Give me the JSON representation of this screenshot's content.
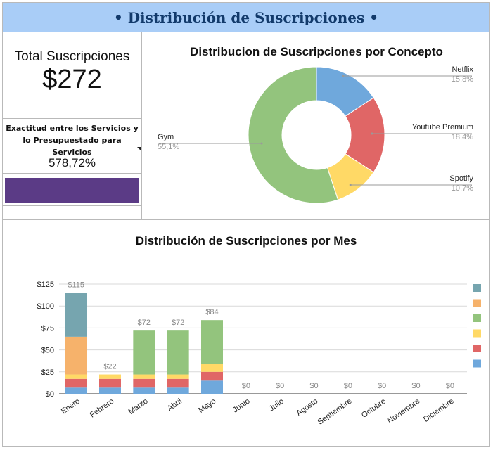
{
  "header": {
    "title": "• Distribución de Suscripciones •"
  },
  "summary": {
    "total_label": "Total Suscripciones",
    "total_value": "$272",
    "accuracy_label": "Exactitud entre los Servicios y lo Presupuestado para Servicios",
    "accuracy_value": "578,72%",
    "accuracy_color": "#5b3b86"
  },
  "chart_data": [
    {
      "type": "pie",
      "donut": true,
      "title": "Distribucion de Suscripciones por Concepto",
      "slices": [
        {
          "label": "Netflix",
          "value": 15.8,
          "value_label": "15,8%",
          "color": "#6fa8dc"
        },
        {
          "label": "Youtube Premium",
          "value": 18.4,
          "value_label": "18,4%",
          "color": "#e06666"
        },
        {
          "label": "Spotify",
          "value": 10.7,
          "value_label": "10,7%",
          "color": "#ffd966"
        },
        {
          "label": "Gym",
          "value": 55.1,
          "value_label": "55,1%",
          "color": "#93c47d"
        }
      ]
    },
    {
      "type": "bar",
      "stacked": true,
      "title": "Distribución de Suscripciones por Mes",
      "categories": [
        "Enero",
        "Febrero",
        "Marzo",
        "Abril",
        "Mayo",
        "Junio",
        "Julio",
        "Agosto",
        "Septiembre",
        "Octubre",
        "Noviembre",
        "Diciembre"
      ],
      "totals_labels": [
        "$115",
        "$22",
        "$72",
        "$72",
        "$84",
        "$0",
        "$0",
        "$0",
        "$0",
        "$0",
        "$0",
        "$0"
      ],
      "series": [
        {
          "color": "#6fa8dc",
          "values": [
            7,
            7,
            7,
            7,
            15,
            0,
            0,
            0,
            0,
            0,
            0,
            0
          ]
        },
        {
          "color": "#e06666",
          "values": [
            10,
            10,
            10,
            10,
            10,
            0,
            0,
            0,
            0,
            0,
            0,
            0
          ]
        },
        {
          "color": "#ffd966",
          "values": [
            5,
            5,
            5,
            5,
            9,
            0,
            0,
            0,
            0,
            0,
            0,
            0
          ]
        },
        {
          "color": "#93c47d",
          "values": [
            0,
            0,
            50,
            50,
            50,
            0,
            0,
            0,
            0,
            0,
            0,
            0
          ]
        },
        {
          "color": "#f6b26b",
          "values": [
            43,
            0,
            0,
            0,
            0,
            0,
            0,
            0,
            0,
            0,
            0,
            0
          ]
        },
        {
          "color": "#76a5af",
          "values": [
            50,
            0,
            0,
            0,
            0,
            0,
            0,
            0,
            0,
            0,
            0,
            0
          ]
        }
      ],
      "y_ticks": [
        "$0",
        "$25",
        "$50",
        "$75",
        "$100",
        "$125"
      ],
      "ylim": [
        0,
        125
      ],
      "grid": true,
      "legend": "right",
      "legend_colors": [
        "#76a5af",
        "#f6b26b",
        "#93c47d",
        "#ffd966",
        "#e06666",
        "#6fa8dc"
      ]
    }
  ]
}
